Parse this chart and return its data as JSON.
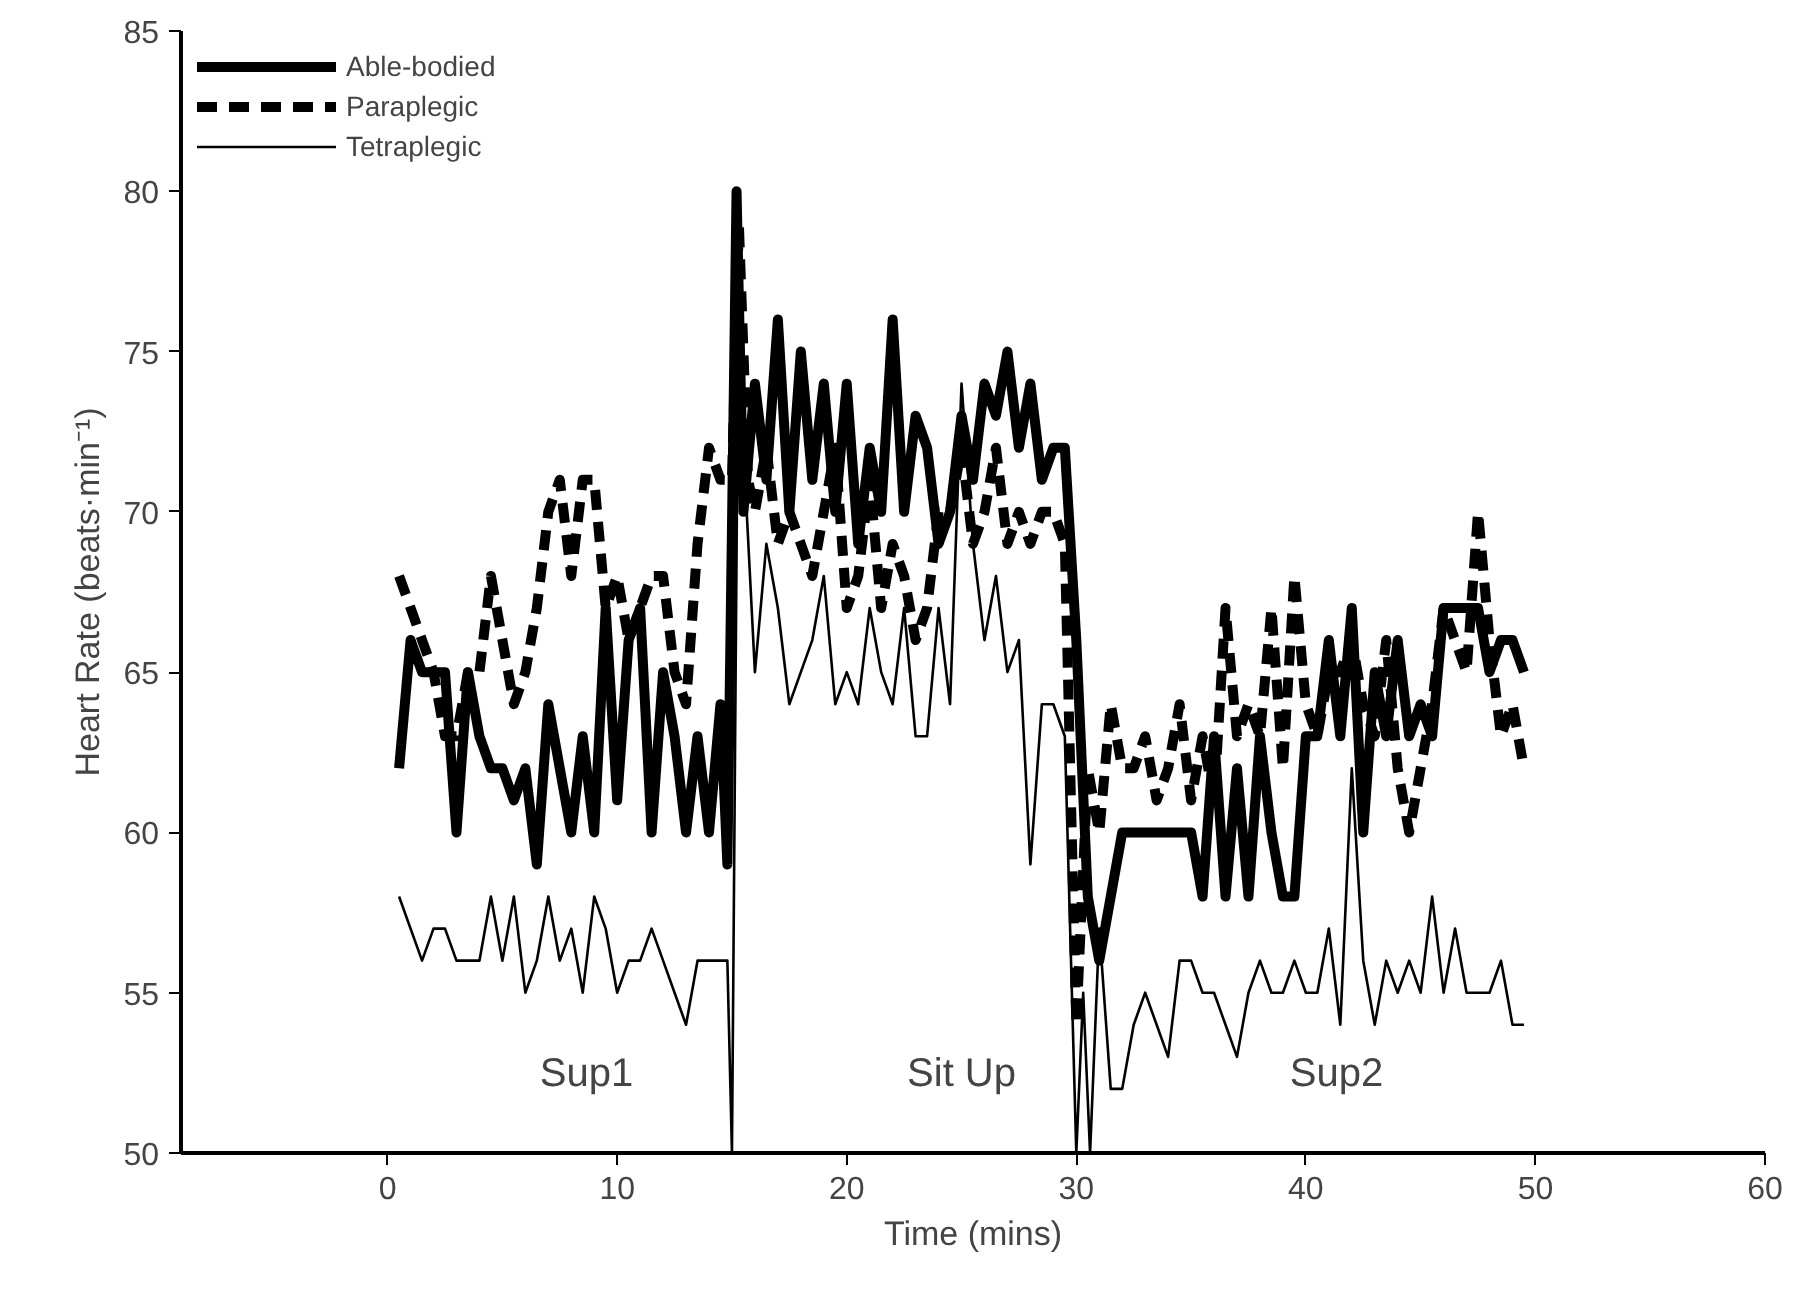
{
  "chart_data": {
    "type": "line",
    "xlabel": "Time (mins)",
    "ylabel": "Heart Rate (beats·min⁻¹)",
    "xlim": [
      -9,
      60
    ],
    "xticks": [
      0,
      10,
      20,
      30,
      40,
      50,
      60
    ],
    "ylim": [
      50,
      85
    ],
    "yticks": [
      50,
      55,
      60,
      65,
      70,
      75,
      80,
      85
    ],
    "grid": false,
    "legend": "top left",
    "marker": "none",
    "annotations": [
      "Sup1",
      "Sit Up",
      "Sup2"
    ],
    "series": [
      {
        "name": "Able-bodied",
        "color": "#000000",
        "line_style": "solid",
        "x": [
          0.5,
          1,
          1.5,
          2,
          2.5,
          3,
          3.5,
          4,
          4.5,
          5,
          5.5,
          6,
          6.5,
          7,
          7.5,
          8,
          8.5,
          9,
          9.5,
          10,
          10.5,
          11,
          11.5,
          12,
          12.5,
          13,
          13.5,
          14,
          14.5,
          14.8,
          15.2,
          15.5,
          16,
          16.5,
          17,
          17.5,
          18,
          18.5,
          19,
          19.5,
          20,
          20.5,
          21,
          21.5,
          22,
          22.5,
          23,
          23.5,
          24,
          24.5,
          25,
          25.5,
          26,
          26.5,
          27,
          27.5,
          28,
          28.5,
          29,
          29.5,
          30,
          30.5,
          31,
          31.5,
          32,
          33,
          34,
          35,
          35.5,
          36,
          36.5,
          37,
          37.5,
          38,
          38.5,
          39,
          39.5,
          40,
          40.5,
          41,
          41.5,
          42,
          42.5,
          43,
          43.5,
          44,
          44.5,
          45,
          45.5,
          46,
          46.5,
          47,
          47.5,
          48,
          48.5,
          49,
          49.5
        ],
        "values": [
          62,
          66,
          65,
          65,
          65,
          60,
          65,
          63,
          62,
          62,
          61,
          62,
          59,
          64,
          62,
          60,
          63,
          60,
          67,
          61,
          66,
          67,
          60,
          65,
          63,
          60,
          63,
          60,
          64,
          59,
          80,
          70,
          74,
          71,
          76,
          70,
          75,
          71,
          74,
          70,
          74,
          69,
          72,
          70,
          76,
          70,
          73,
          72,
          69,
          70,
          73,
          71,
          74,
          73,
          75,
          72,
          74,
          71,
          72,
          72,
          66,
          58,
          56,
          58,
          60,
          60,
          60,
          60,
          58,
          63,
          58,
          62,
          58,
          63,
          60,
          58,
          58,
          63,
          63,
          66,
          63,
          67,
          60,
          65,
          63,
          66,
          63,
          64,
          63,
          67,
          67,
          67,
          67,
          65,
          66,
          66,
          65
        ]
      },
      {
        "name": "Paraplegic",
        "color": "#000000",
        "line_style": "dashed",
        "x": [
          0.5,
          1,
          1.5,
          2,
          2.5,
          3,
          3.5,
          4,
          4.5,
          5,
          5.5,
          6,
          6.5,
          7,
          7.5,
          8,
          8.5,
          9,
          9.5,
          10,
          10.5,
          11,
          11.5,
          12,
          12.5,
          13,
          13.5,
          14,
          14.5,
          15,
          15.3,
          15.7,
          16,
          16.5,
          17,
          17.5,
          18,
          18.5,
          19,
          19.5,
          20,
          20.5,
          21,
          21.5,
          22,
          22.5,
          23,
          23.5,
          24,
          24.5,
          25,
          25.5,
          26,
          26.5,
          27,
          27.5,
          28,
          28.5,
          29,
          29.5,
          30,
          30.5,
          31,
          31.5,
          32,
          32.5,
          33,
          33.5,
          34,
          34.5,
          35,
          35.5,
          36,
          36.5,
          37,
          37.5,
          38,
          38.5,
          39,
          39.5,
          40,
          40.5,
          41,
          41.5,
          42,
          42.5,
          43,
          43.5,
          44,
          44.5,
          45,
          45.5,
          46,
          46.5,
          47,
          47.5,
          48,
          48.5,
          49,
          49.5
        ],
        "values": [
          68,
          67,
          66,
          65,
          63,
          63,
          65,
          65,
          68,
          66,
          64,
          65,
          67,
          70,
          71,
          68,
          71,
          71,
          67,
          68,
          66,
          67,
          68,
          68,
          65,
          64,
          69,
          72,
          71,
          71,
          79,
          71,
          70,
          72,
          69,
          70,
          69,
          68,
          70,
          72,
          67,
          68,
          71,
          67,
          69,
          68,
          66,
          67,
          70,
          70,
          72,
          69,
          70,
          72,
          69,
          70,
          69,
          70,
          70,
          69,
          54,
          62,
          60,
          64,
          62,
          62,
          63,
          61,
          62,
          64,
          61,
          63,
          61,
          67,
          63,
          64,
          63,
          67,
          62,
          68,
          64,
          63,
          65,
          65,
          66,
          64,
          63,
          66,
          62,
          60,
          62,
          64,
          67,
          66,
          65,
          70,
          66,
          63,
          64,
          62
        ]
      },
      {
        "name": "Tetraplegic",
        "color": "#000000",
        "line_style": "solid",
        "x": [
          0.5,
          1,
          1.5,
          2,
          2.5,
          3,
          3.5,
          4,
          4.5,
          5,
          5.5,
          6,
          6.5,
          7,
          7.5,
          8,
          8.5,
          9,
          9.5,
          10,
          10.5,
          11,
          11.5,
          12,
          12.5,
          13,
          13.5,
          14,
          14.5,
          14.8,
          15,
          15.3,
          15.5,
          16,
          16.5,
          17,
          17.5,
          18,
          18.5,
          19,
          19.5,
          20,
          20.5,
          21,
          21.5,
          22,
          22.5,
          23,
          23.5,
          24,
          24.5,
          25,
          25.5,
          26,
          26.5,
          27,
          27.5,
          28,
          28.5,
          29,
          29.5,
          30,
          30.3,
          30.6,
          31,
          31.5,
          32,
          32.5,
          33,
          33.5,
          34,
          34.5,
          35,
          35.5,
          36,
          36.5,
          37,
          37.5,
          38,
          38.5,
          39,
          39.5,
          40,
          40.5,
          41,
          41.5,
          42,
          42.5,
          43,
          43.5,
          44,
          44.5,
          45,
          45.5,
          46,
          46.5,
          47,
          47.5,
          48,
          48.5,
          49,
          49.5
        ],
        "values": [
          58,
          57,
          56,
          57,
          57,
          56,
          56,
          56,
          58,
          56,
          58,
          55,
          56,
          58,
          56,
          57,
          55,
          58,
          57,
          55,
          56,
          56,
          57,
          56,
          55,
          54,
          56,
          56,
          56,
          56,
          50,
          78,
          72,
          65,
          69,
          67,
          64,
          65,
          66,
          68,
          64,
          65,
          64,
          67,
          65,
          64,
          67,
          63,
          63,
          67,
          64,
          74,
          69,
          66,
          68,
          65,
          66,
          59,
          64,
          64,
          63,
          50,
          55,
          50,
          57,
          52,
          52,
          54,
          55,
          54,
          53,
          56,
          56,
          55,
          55,
          54,
          53,
          55,
          56,
          55,
          55,
          56,
          55,
          55,
          57,
          54,
          62,
          56,
          54,
          56,
          55,
          56,
          55,
          58,
          55,
          57,
          55,
          55,
          55,
          56,
          54,
          54
        ]
      }
    ]
  }
}
